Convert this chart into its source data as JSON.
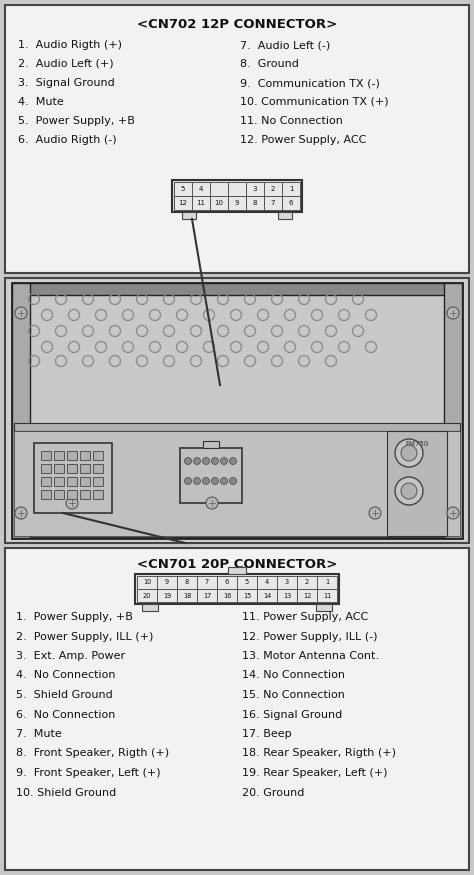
{
  "bg_color": "#c8c8c8",
  "box_facecolor": "#f2f2f2",
  "box_edgecolor": "#444444",
  "text_color": "#111111",
  "title_cn702": "<CN702 12P CONNECTOR>",
  "cn702_left": [
    "1.  Audio Rigth (+)",
    "2.  Audio Left (+)",
    "3.  Signal Ground",
    "4.  Mute",
    "5.  Power Supply, +B",
    "6.  Audio Rigth (-)"
  ],
  "cn702_right": [
    "7.  Audio Left (-)",
    "8.  Ground",
    "9.  Communication TX (-)",
    "10. Communication TX (+)",
    "11. No Connection",
    "12. Power Supply, ACC"
  ],
  "cn702_top_row": [
    "5",
    "4",
    "",
    "",
    "3",
    "2",
    "1"
  ],
  "cn702_bot_row": [
    "12",
    "11",
    "10",
    "9",
    "8",
    "7",
    "6"
  ],
  "title_cn701": "<CN701 20P CONNECTOR>",
  "cn701_top_row": [
    "10",
    "9",
    "8",
    "7",
    "6",
    "5",
    "4",
    "3",
    "2",
    "1"
  ],
  "cn701_bot_row": [
    "20",
    "19",
    "18",
    "17",
    "16",
    "15",
    "14",
    "13",
    "12",
    "11"
  ],
  "cn701_left": [
    "1.  Power Supply, +B",
    "2.  Power Supply, ILL (+)",
    "3.  Ext. Amp. Power",
    "4.  No Connection",
    "5.  Shield Ground",
    "6.  No Connection",
    "7.  Mute",
    "8.  Front Speaker, Rigth (+)",
    "9.  Front Speaker, Left (+)",
    "10. Shield Ground"
  ],
  "cn701_right": [
    "11. Power Supply, ACC",
    "12. Power Supply, ILL (-)",
    "13. Motor Antenna Cont.",
    "14. No Connection",
    "15. No Connection",
    "16. Signal Ground",
    "17. Beep",
    "18. Rear Speaker, Rigth (+)",
    "19. Rear Speaker, Left (+)",
    "20. Ground"
  ]
}
